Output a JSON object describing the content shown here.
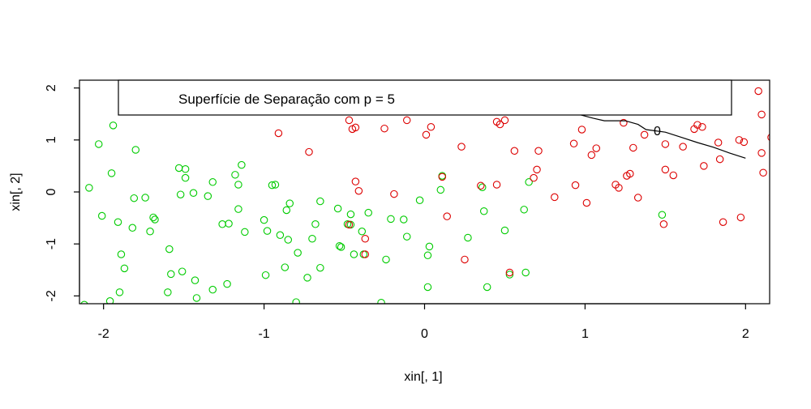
{
  "chart_data": {
    "type": "scatter",
    "title": "",
    "xlabel": "xin[, 1]",
    "ylabel": "xin[, 2]",
    "xlim": [
      -2.15,
      2.15
    ],
    "ylim": [
      -2.15,
      2.15
    ],
    "x_ticks": [
      -2,
      -1,
      0,
      1,
      2
    ],
    "y_ticks": [
      -2,
      -1,
      0,
      1,
      2
    ],
    "grid": false,
    "legend": {
      "text": "Superfície de Separação com p = 5",
      "placement": "top"
    },
    "contour": {
      "level_label": "0",
      "color": "#000000",
      "label_at": [
        1.45,
        1.15
      ],
      "points": [
        [
          0.07,
          1.98
        ],
        [
          0.15,
          1.95
        ],
        [
          0.22,
          1.95
        ],
        [
          0.3,
          1.9
        ],
        [
          0.4,
          1.85
        ],
        [
          0.48,
          1.85
        ],
        [
          0.55,
          1.8
        ],
        [
          0.62,
          1.73
        ],
        [
          0.7,
          1.68
        ],
        [
          0.8,
          1.65
        ],
        [
          0.88,
          1.6
        ],
        [
          0.95,
          1.5
        ],
        [
          1.05,
          1.42
        ],
        [
          1.12,
          1.37
        ],
        [
          1.25,
          1.37
        ],
        [
          1.33,
          1.3
        ],
        [
          1.38,
          1.2
        ],
        [
          1.5,
          1.15
        ],
        [
          1.6,
          1.05
        ],
        [
          1.7,
          0.95
        ],
        [
          1.8,
          0.86
        ],
        [
          1.9,
          0.75
        ],
        [
          2.0,
          0.65
        ]
      ]
    },
    "series": [
      {
        "color": "#00cc00",
        "points": [
          [
            -2.09,
            0.08
          ],
          [
            -2.03,
            0.92
          ],
          [
            -2.01,
            -0.46
          ],
          [
            -2.12,
            -2.17
          ],
          [
            -1.96,
            -2.1
          ],
          [
            -1.95,
            0.36
          ],
          [
            -1.94,
            1.28
          ],
          [
            -1.91,
            -0.58
          ],
          [
            -1.9,
            -1.93
          ],
          [
            -1.89,
            -1.2
          ],
          [
            -1.87,
            -1.47
          ],
          [
            -1.82,
            -0.69
          ],
          [
            -1.81,
            -0.12
          ],
          [
            -1.8,
            0.81
          ],
          [
            -1.74,
            -0.11
          ],
          [
            -1.71,
            -0.76
          ],
          [
            -1.69,
            -0.49
          ],
          [
            -1.68,
            -0.53
          ],
          [
            -1.6,
            -1.93
          ],
          [
            -1.59,
            -1.1
          ],
          [
            -1.58,
            -1.58
          ],
          [
            -1.53,
            0.46
          ],
          [
            -1.52,
            -0.05
          ],
          [
            -1.51,
            -1.53
          ],
          [
            -1.49,
            0.44
          ],
          [
            -1.49,
            0.27
          ],
          [
            -1.44,
            -0.02
          ],
          [
            -1.43,
            -1.7
          ],
          [
            -1.42,
            -2.04
          ],
          [
            -1.35,
            -0.08
          ],
          [
            -1.32,
            0.19
          ],
          [
            -1.32,
            -1.88
          ],
          [
            -1.26,
            -0.62
          ],
          [
            -1.23,
            -1.77
          ],
          [
            -1.22,
            -0.61
          ],
          [
            -1.18,
            0.33
          ],
          [
            -1.16,
            0.14
          ],
          [
            -1.16,
            -0.33
          ],
          [
            -1.14,
            0.52
          ],
          [
            -1.12,
            -0.77
          ],
          [
            -1.0,
            -0.54
          ],
          [
            -0.99,
            -1.6
          ],
          [
            -0.98,
            -0.75
          ],
          [
            -0.95,
            0.13
          ],
          [
            -0.93,
            0.14
          ],
          [
            -0.9,
            -0.83
          ],
          [
            -0.87,
            -1.45
          ],
          [
            -0.86,
            -0.35
          ],
          [
            -0.85,
            -0.92
          ],
          [
            -0.84,
            -0.22
          ],
          [
            -0.8,
            -2.12
          ],
          [
            -0.79,
            -1.17
          ],
          [
            -0.73,
            -1.65
          ],
          [
            -0.7,
            -0.9
          ],
          [
            -0.68,
            -0.62
          ],
          [
            -0.65,
            -0.18
          ],
          [
            -0.65,
            -1.46
          ],
          [
            -0.54,
            -0.32
          ],
          [
            -0.53,
            -1.04
          ],
          [
            -0.52,
            -1.06
          ],
          [
            -0.48,
            -0.62
          ],
          [
            -0.46,
            -0.43
          ],
          [
            -0.46,
            -0.63
          ],
          [
            -0.44,
            -1.2
          ],
          [
            -0.39,
            -0.76
          ],
          [
            -0.38,
            -1.2
          ],
          [
            -0.35,
            -0.4
          ],
          [
            -0.27,
            -2.13
          ],
          [
            -0.24,
            -1.3
          ],
          [
            -0.21,
            -0.52
          ],
          [
            -0.13,
            -0.53
          ],
          [
            -0.11,
            -0.86
          ],
          [
            -0.03,
            -0.16
          ],
          [
            0.02,
            -1.22
          ],
          [
            0.02,
            -1.83
          ],
          [
            0.03,
            -1.05
          ],
          [
            0.1,
            0.04
          ],
          [
            0.11,
            0.31
          ],
          [
            0.27,
            -0.88
          ],
          [
            0.36,
            0.09
          ],
          [
            0.37,
            -0.37
          ],
          [
            0.39,
            -1.83
          ],
          [
            0.5,
            -0.74
          ],
          [
            0.53,
            -1.59
          ],
          [
            0.62,
            -0.34
          ],
          [
            0.63,
            -1.55
          ],
          [
            0.65,
            0.19
          ],
          [
            1.48,
            -0.44
          ]
        ]
      },
      {
        "color": "#dd0000",
        "points": [
          [
            -0.91,
            1.13
          ],
          [
            -0.72,
            0.77
          ],
          [
            -0.47,
            1.38
          ],
          [
            -0.47,
            -0.63
          ],
          [
            -0.45,
            1.21
          ],
          [
            -0.43,
            1.24
          ],
          [
            -0.43,
            0.2
          ],
          [
            -0.41,
            0.02
          ],
          [
            -0.37,
            -0.9
          ],
          [
            -0.37,
            -1.2
          ],
          [
            -0.25,
            1.22
          ],
          [
            -0.19,
            -0.04
          ],
          [
            -0.11,
            1.38
          ],
          [
            0.01,
            1.1
          ],
          [
            0.04,
            1.25
          ],
          [
            0.11,
            0.29
          ],
          [
            0.14,
            -0.47
          ],
          [
            0.23,
            0.87
          ],
          [
            0.25,
            -1.3
          ],
          [
            0.35,
            0.12
          ],
          [
            0.45,
            1.35
          ],
          [
            0.45,
            0.14
          ],
          [
            0.47,
            1.3
          ],
          [
            0.5,
            1.38
          ],
          [
            0.53,
            -1.55
          ],
          [
            0.56,
            0.79
          ],
          [
            0.68,
            0.27
          ],
          [
            0.7,
            0.43
          ],
          [
            0.71,
            0.79
          ],
          [
            0.81,
            -0.1
          ],
          [
            0.93,
            0.93
          ],
          [
            0.94,
            0.13
          ],
          [
            0.98,
            1.2
          ],
          [
            1.01,
            -0.21
          ],
          [
            1.04,
            0.71
          ],
          [
            1.07,
            0.84
          ],
          [
            1.19,
            0.14
          ],
          [
            1.21,
            0.08
          ],
          [
            1.24,
            1.33
          ],
          [
            1.26,
            0.31
          ],
          [
            1.28,
            0.35
          ],
          [
            1.3,
            0.85
          ],
          [
            1.33,
            -0.11
          ],
          [
            1.37,
            1.1
          ],
          [
            1.49,
            -0.62
          ],
          [
            1.5,
            0.92
          ],
          [
            1.5,
            0.43
          ],
          [
            1.55,
            0.32
          ],
          [
            1.61,
            0.87
          ],
          [
            1.68,
            1.21
          ],
          [
            1.7,
            1.29
          ],
          [
            1.73,
            1.25
          ],
          [
            1.74,
            0.5
          ],
          [
            1.83,
            0.95
          ],
          [
            1.84,
            0.63
          ],
          [
            1.86,
            -0.58
          ],
          [
            1.96,
            1.0
          ],
          [
            1.97,
            -0.49
          ],
          [
            1.99,
            0.96
          ],
          [
            2.08,
            1.94
          ],
          [
            2.1,
            0.75
          ],
          [
            2.1,
            1.49
          ],
          [
            2.11,
            0.37
          ],
          [
            2.16,
            1.05
          ]
        ]
      }
    ]
  }
}
